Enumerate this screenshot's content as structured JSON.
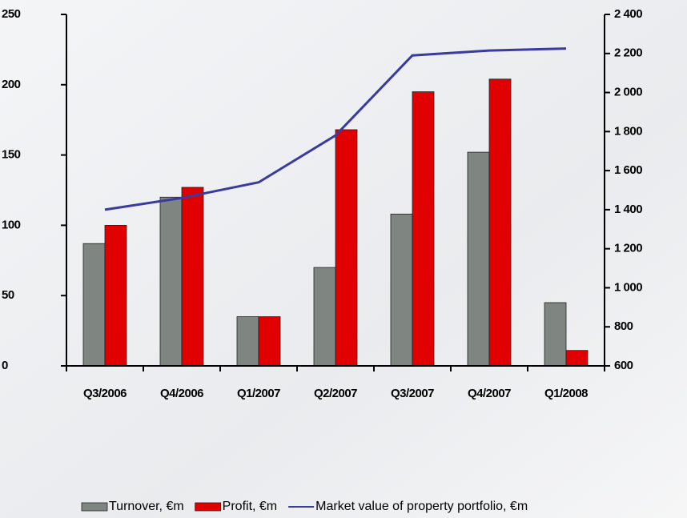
{
  "chart_data": {
    "type": "bar-line",
    "categories": [
      "Q3/2006",
      "Q4/2006",
      "Q1/2007",
      "Q2/2007",
      "Q3/2007",
      "Q4/2007",
      "Q1/2008"
    ],
    "series": [
      {
        "name": "Turnover, €m",
        "color": "#7f8682",
        "type": "bar",
        "values": [
          87,
          120,
          35,
          70,
          108,
          152,
          45
        ]
      },
      {
        "name": "Profit, €m",
        "color": "#e00000",
        "type": "bar",
        "values": [
          100,
          127,
          35,
          168,
          195,
          204,
          11
        ]
      },
      {
        "name": "Market value of property portfolio, €m",
        "color": "#3a3aa0",
        "type": "line",
        "axis": "y2",
        "values": [
          1400,
          1460,
          1540,
          1780,
          2190,
          2215,
          2225
        ]
      }
    ],
    "ylim": [
      0,
      250
    ],
    "yticks": [
      0,
      50,
      100,
      150,
      200,
      250
    ],
    "y2lim": [
      600,
      2400
    ],
    "y2ticks": [
      600,
      800,
      {
        "value": 1000,
        "label": "1 000"
      },
      {
        "value": 1200,
        "label": "1 200"
      },
      {
        "value": 1400,
        "label": "1 400"
      },
      {
        "value": 1600,
        "label": "1 600"
      },
      {
        "value": 1800,
        "label": "1 800"
      },
      {
        "value": 2000,
        "label": "2 000"
      },
      {
        "value": 2200,
        "label": "2 200"
      },
      {
        "value": 2400,
        "label": "2 400"
      }
    ],
    "grid": false,
    "legend": "bottom"
  }
}
